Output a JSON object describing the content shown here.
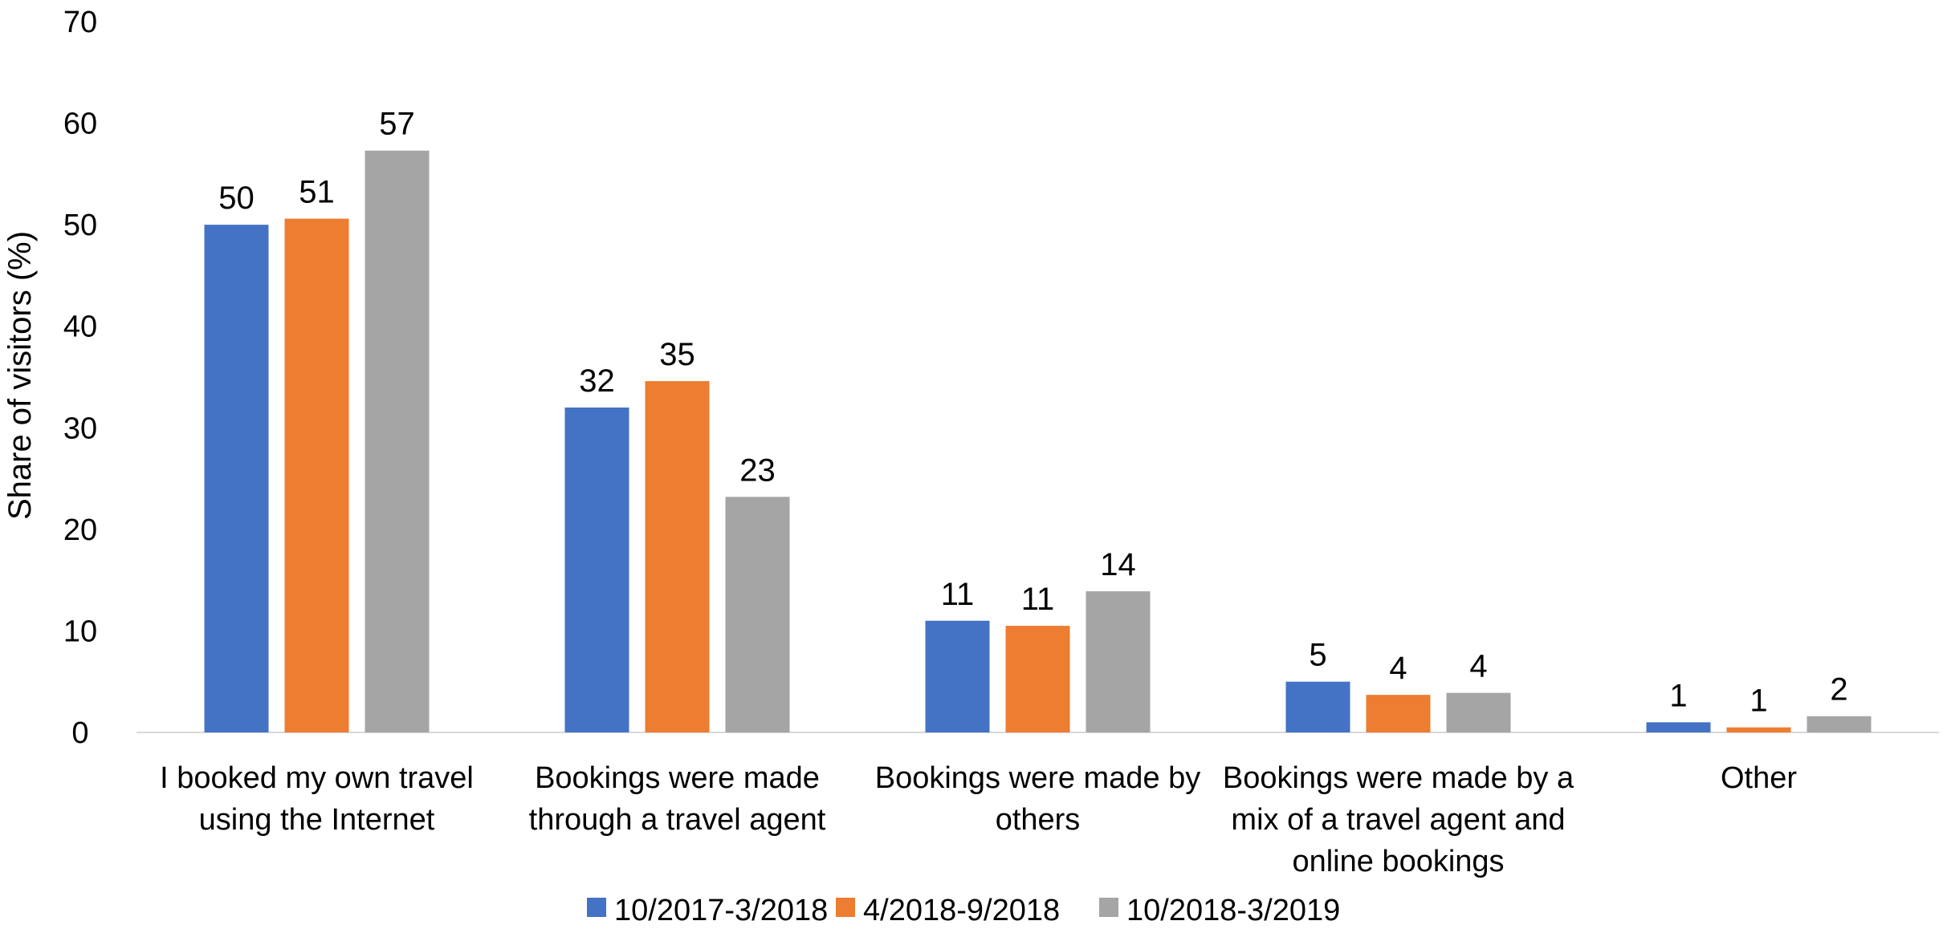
{
  "chart_data": {
    "type": "bar",
    "title": "",
    "xlabel": "",
    "ylabel": "Share of visitors (%)",
    "ylim": [
      0,
      70
    ],
    "yticks": [
      0,
      10,
      20,
      30,
      40,
      50,
      60,
      70
    ],
    "grid": false,
    "legend_position": "bottom",
    "categories": [
      [
        "I booked my own travel",
        "using the Internet"
      ],
      [
        "Bookings were made",
        "through a travel agent"
      ],
      [
        "Bookings were made by",
        "others"
      ],
      [
        "Bookings were made by a",
        "mix of a travel agent and",
        "online bookings"
      ],
      [
        "Other"
      ]
    ],
    "series": [
      {
        "name": "10/2017-3/2018",
        "color": "#4472C4",
        "values": [
          50,
          32,
          11,
          5,
          1
        ],
        "labels": [
          "50",
          "32",
          "11",
          "5",
          "1"
        ]
      },
      {
        "name": "4/2018-9/2018",
        "color": "#ED7D31",
        "values": [
          50.6,
          34.6,
          10.5,
          3.7,
          0.5
        ],
        "labels": [
          "51",
          "35",
          "11",
          "4",
          "1"
        ]
      },
      {
        "name": "10/2018-3/2019",
        "color": "#A5A5A5",
        "values": [
          57.3,
          23.2,
          13.9,
          3.9,
          1.6
        ],
        "labels": [
          "57",
          "23",
          "14",
          "4",
          "2"
        ]
      }
    ]
  }
}
